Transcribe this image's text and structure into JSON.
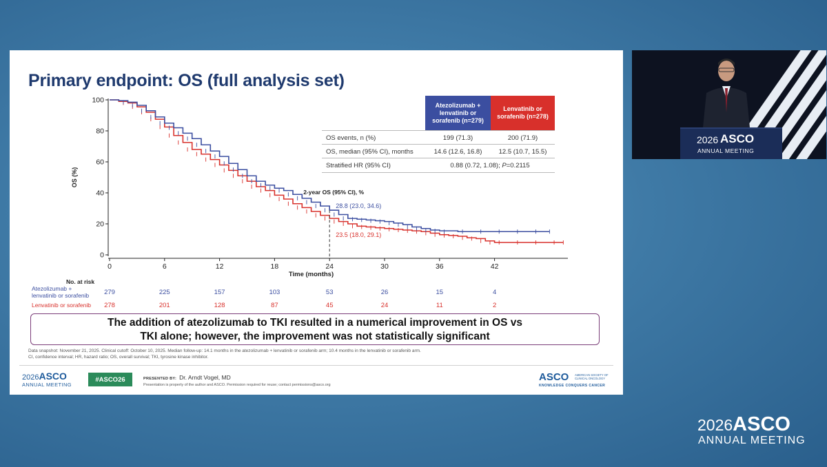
{
  "slide": {
    "title": "Primary endpoint: OS (full analysis set)",
    "table": {
      "col1_header": "Atezolizumab + lenvatinib or sorafenib (n=279)",
      "col2_header": "Lenvatinib or sorafenib (n=278)",
      "col1_color": "#3b4ea0",
      "col2_color": "#d8302b",
      "rows": [
        {
          "label": "OS events, n (%)",
          "v1": "199 (71.3)",
          "v2": "200 (71.9)"
        },
        {
          "label": "OS, median (95% CI), months",
          "v1": "14.6 (12.6, 16.8)",
          "v2": "12.5 (10.7, 15.5)"
        }
      ],
      "hr": {
        "label": "Stratified HR (95% CI)",
        "value_prefix": "0.88 (0.72, 1.08); ",
        "p_label": "P",
        "p_value": "=0.2115"
      }
    },
    "callout": {
      "line1": "The addition of atezolizumab to TKI resulted in a numerical improvement in OS vs",
      "line2": "TKI alone; however, the improvement was not statistically significant"
    },
    "footnote": {
      "line1": "Data snapshot: November 21, 2025. Clinical cutoff: October 10, 2025. Median follow-up: 14.1 months in the atezolizumab + lenvatinib or sorafenib arm; 10.4 months in the lenvatinib or sorafenib arm.",
      "line2": "CI, confidence interval; HR, hazard ratio; OS, overall survival; TKI, tyrosine kinase inhibitor."
    },
    "footer": {
      "logo_year": "2026",
      "logo_word": "ASCO",
      "logo_sub": "ANNUAL MEETING",
      "hashtag": "#ASCO26",
      "presented_label": "PRESENTED BY:",
      "presenter": "Dr. Arndt Vogel, MD",
      "permission": "Presentation is property of the author and ASCO. Permission required for reuse; contact permissions@asco.org",
      "asco_word": "ASCO",
      "asco_society": "AMERICAN SOCIETY OF CLINICAL ONCOLOGY",
      "asco_tagline": "KNOWLEDGE CONQUERS CANCER"
    }
  },
  "chart_data": {
    "type": "line",
    "subtype": "kaplan-meier",
    "xlabel": "Time (months)",
    "ylabel": "OS (%)",
    "xlim": [
      0,
      50
    ],
    "ylim": [
      0,
      100
    ],
    "x_ticks": [
      0,
      6,
      12,
      18,
      24,
      30,
      36,
      42
    ],
    "y_ticks": [
      0,
      20,
      40,
      60,
      80,
      100
    ],
    "colors": {
      "atezo": "#3b4ea0",
      "lenva": "#d8302b"
    },
    "series": [
      {
        "key": "atezo",
        "x": [
          0,
          1,
          2,
          3,
          4,
          5,
          6,
          7,
          8,
          9,
          10,
          11,
          12,
          13,
          14,
          15,
          16,
          17,
          18,
          19,
          20,
          21,
          22,
          23,
          24,
          25,
          26,
          27,
          28,
          29,
          30,
          31,
          32,
          33,
          34,
          35,
          36,
          38,
          40,
          42,
          44,
          46,
          48
        ],
        "y": [
          100,
          99.5,
          98.5,
          96.5,
          93,
          89,
          85,
          82,
          78.5,
          75,
          71,
          67,
          63.5,
          59,
          55,
          51,
          47.5,
          45,
          43,
          41.5,
          39,
          36.5,
          34,
          31.5,
          28.8,
          26,
          23.5,
          23,
          22.5,
          22,
          21.5,
          20.5,
          19.5,
          18,
          17,
          16,
          15.5,
          15,
          15,
          15,
          15,
          15,
          15
        ]
      },
      {
        "key": "lenva",
        "x": [
          0,
          1,
          2,
          3,
          4,
          5,
          6,
          7,
          8,
          9,
          10,
          11,
          12,
          13,
          14,
          15,
          16,
          17,
          18,
          19,
          20,
          21,
          22,
          23,
          24,
          25,
          26,
          27,
          28,
          29,
          30,
          31,
          32,
          33,
          34,
          35,
          36,
          37,
          38,
          39,
          40,
          41,
          42,
          44,
          46,
          48,
          49.5
        ],
        "y": [
          100,
          99,
          98,
          95.5,
          92,
          87.5,
          82.5,
          77,
          72.5,
          68,
          65,
          61.5,
          58,
          54.5,
          51,
          47.5,
          44,
          41.5,
          38.5,
          36,
          33,
          30.5,
          28,
          25.5,
          23.5,
          21.5,
          20,
          18.5,
          18,
          17.5,
          17,
          16.5,
          16,
          15.5,
          15,
          14,
          13,
          12.5,
          12,
          11,
          10.5,
          9,
          8,
          8,
          8,
          8,
          8
        ]
      }
    ],
    "annotations": {
      "title": "2-year OS (95% CI), %",
      "atezo_label": "28.8 (23.0, 34.6)",
      "lenva_label": "23.5 (18.0, 29.1)",
      "x": 24
    },
    "risk_table": {
      "title": "No. at risk",
      "rows": [
        {
          "key": "atezo",
          "label1": "Atezolizumab +",
          "label2": "lenvatinib or sorafenib",
          "values": [
            "279",
            "225",
            "157",
            "103",
            "53",
            "26",
            "15",
            "4"
          ]
        },
        {
          "key": "lenva",
          "label1": "Lenvatinib or sorafenib",
          "label2": "",
          "values": [
            "278",
            "201",
            "128",
            "87",
            "45",
            "24",
            "11",
            "2"
          ]
        }
      ]
    }
  },
  "bottom_logo": {
    "year": "2026",
    "word": "ASCO",
    "sub": "ANNUAL MEETING"
  },
  "video_logo": {
    "year": "2026",
    "word": "ASCO",
    "sub": "ANNUAL MEETING"
  }
}
